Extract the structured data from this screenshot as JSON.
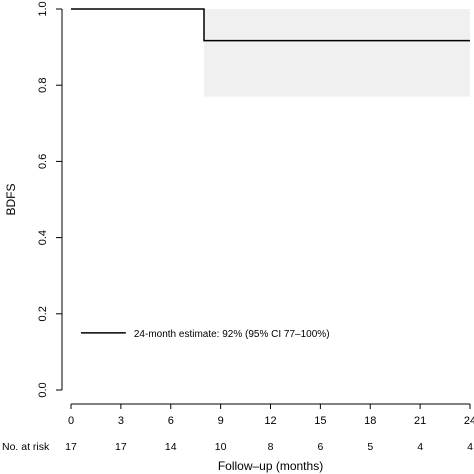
{
  "chart_data": {
    "type": "line",
    "subtype": "kaplan-meier",
    "title": "",
    "xlabel": "Follow–up (months)",
    "ylabel": "BDFS",
    "xlim": [
      0,
      24
    ],
    "ylim": [
      0,
      1
    ],
    "x_ticks": [
      0,
      3,
      6,
      9,
      12,
      15,
      18,
      21,
      24
    ],
    "x_tick_labels": [
      "0",
      "3",
      "6",
      "9",
      "12",
      "15",
      "18",
      "21",
      "24"
    ],
    "y_ticks": [
      0,
      0.2,
      0.4,
      0.6,
      0.8,
      1.0
    ],
    "y_tick_labels": [
      "0.0",
      "0.2",
      "0.4",
      "0.6",
      "0.8",
      "1.0"
    ],
    "grid": false,
    "series": [
      {
        "name": "24-month estimate: 92% (95% CI 77–100%)",
        "color": "#000000",
        "steps": [
          {
            "x": 0,
            "y": 1.0
          },
          {
            "x": 8.0,
            "y": 0.917
          },
          {
            "x": 24,
            "y": 0.917
          }
        ],
        "ci_band": [
          {
            "x_start": 8.0,
            "x_end": 24,
            "lower": 0.77,
            "upper": 1.0
          }
        ]
      }
    ],
    "legend": {
      "placement": "bottom-left",
      "label": "24-month estimate: 92% (95% CI 77–100%)"
    },
    "risk_table": {
      "label": "No. at risk",
      "times": [
        0,
        3,
        6,
        9,
        12,
        15,
        18,
        21,
        24
      ],
      "values": [
        "17",
        "17",
        "14",
        "10",
        "8",
        "6",
        "5",
        "4",
        "4"
      ]
    },
    "colors": {
      "line": "#000000",
      "ci_band": "#f0f0f0"
    }
  }
}
